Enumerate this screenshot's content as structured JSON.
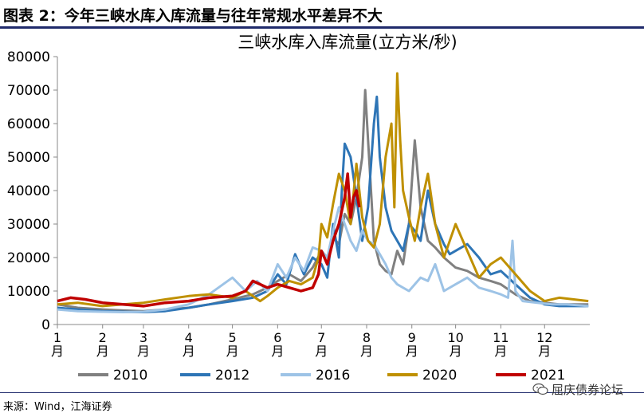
{
  "figure": {
    "label": "图表 2：今年三峡水库入库流量与往年常规水平差异不大",
    "source": "来源：Wind，江海证券",
    "watermark": "屈庆债券论坛"
  },
  "chart_data": {
    "type": "line",
    "title": "三峡水库入库流量(立方米/秒)",
    "ylim": [
      0,
      80000
    ],
    "yticks": [
      0,
      10000,
      20000,
      30000,
      40000,
      50000,
      60000,
      70000,
      80000
    ],
    "month_labels": [
      "1\n月",
      "2\n月",
      "3\n月",
      "4\n月",
      "5\n月",
      "6\n月",
      "7\n月",
      "8\n月",
      "9\n月",
      "10\n月",
      "11\n月",
      "12\n月"
    ],
    "x_unit": "day of year",
    "xlim": [
      1,
      366
    ],
    "legend_position": "bottom",
    "grid": false,
    "series": [
      {
        "name": "2010",
        "color": "#808080",
        "x": [
          1,
          15,
          32,
          46,
          60,
          75,
          91,
          105,
          121,
          135,
          145,
          152,
          160,
          168,
          176,
          182,
          186,
          190,
          194,
          198,
          202,
          206,
          210,
          212,
          214,
          216,
          218,
          222,
          226,
          230,
          234,
          238,
          242,
          246,
          250,
          255,
          260,
          266,
          274,
          282,
          290,
          298,
          305,
          315,
          325,
          335,
          345,
          355,
          365
        ],
        "y": [
          6000,
          5000,
          4500,
          4200,
          4000,
          4500,
          5000,
          6000,
          7500,
          9000,
          11000,
          13000,
          15000,
          13000,
          17000,
          22000,
          20000,
          26000,
          24000,
          33000,
          30000,
          38000,
          50000,
          70000,
          55000,
          40000,
          25000,
          18000,
          16000,
          15000,
          22000,
          18000,
          30000,
          55000,
          35000,
          25000,
          23000,
          20000,
          17000,
          16000,
          14000,
          13000,
          12000,
          9000,
          7000,
          6500,
          6000,
          6000,
          6000
        ]
      },
      {
        "name": "2012",
        "color": "#2e75b6",
        "x": [
          1,
          15,
          32,
          46,
          60,
          75,
          91,
          105,
          121,
          135,
          145,
          152,
          158,
          164,
          170,
          176,
          182,
          186,
          190,
          194,
          196,
          198,
          202,
          206,
          210,
          214,
          218,
          220,
          222,
          226,
          230,
          234,
          238,
          242,
          246,
          250,
          255,
          260,
          266,
          270,
          274,
          282,
          290,
          298,
          305,
          315,
          325,
          335,
          345,
          355,
          365
        ],
        "y": [
          5000,
          4500,
          4000,
          3800,
          3700,
          4000,
          5000,
          6000,
          7000,
          8000,
          10000,
          15000,
          12000,
          21000,
          15000,
          20000,
          18000,
          14000,
          30000,
          20000,
          40000,
          54000,
          50000,
          38000,
          25000,
          35000,
          60000,
          68000,
          50000,
          35000,
          28000,
          25000,
          22000,
          30000,
          28000,
          25000,
          40000,
          30000,
          24000,
          21000,
          22000,
          24000,
          20000,
          15000,
          16000,
          12000,
          8000,
          6000,
          5500,
          5500,
          5500
        ]
      },
      {
        "name": "2016",
        "color": "#9dc3e6",
        "x": [
          1,
          15,
          32,
          46,
          60,
          75,
          91,
          105,
          121,
          130,
          138,
          145,
          152,
          158,
          164,
          170,
          176,
          182,
          186,
          190,
          194,
          198,
          202,
          206,
          210,
          214,
          218,
          222,
          226,
          230,
          234,
          238,
          242,
          246,
          250,
          255,
          260,
          266,
          274,
          282,
          290,
          298,
          305,
          310,
          313,
          315,
          320,
          330,
          340,
          350,
          365
        ],
        "y": [
          4500,
          4000,
          3800,
          3700,
          3800,
          4500,
          6000,
          9000,
          14000,
          10000,
          13000,
          10000,
          18000,
          14000,
          20000,
          16000,
          23000,
          22000,
          20000,
          28000,
          35000,
          30000,
          25000,
          22000,
          28000,
          25000,
          24000,
          21000,
          18000,
          14000,
          12000,
          11000,
          10000,
          12000,
          14000,
          13000,
          18000,
          10000,
          12000,
          14000,
          11000,
          10000,
          9000,
          8000,
          25000,
          10000,
          7000,
          6500,
          6000,
          6000,
          5500
        ]
      },
      {
        "name": "2020",
        "color": "#bf9000",
        "x": [
          1,
          15,
          32,
          46,
          60,
          75,
          91,
          105,
          121,
          130,
          140,
          145,
          152,
          160,
          168,
          176,
          180,
          182,
          186,
          190,
          194,
          198,
          202,
          206,
          210,
          214,
          218,
          222,
          226,
          230,
          232,
          234,
          236,
          238,
          242,
          246,
          250,
          255,
          260,
          266,
          270,
          274,
          282,
          290,
          298,
          305,
          315,
          325,
          335,
          345,
          355,
          365
        ],
        "y": [
          6000,
          6500,
          5500,
          6000,
          6500,
          7500,
          8500,
          9000,
          8000,
          10000,
          7000,
          8500,
          11000,
          13000,
          12000,
          14000,
          20000,
          30000,
          26000,
          36000,
          45000,
          40000,
          30000,
          48000,
          32000,
          25000,
          23000,
          30000,
          50000,
          60000,
          35000,
          75000,
          55000,
          40000,
          32000,
          25000,
          35000,
          45000,
          30000,
          20000,
          25000,
          30000,
          22000,
          14000,
          18000,
          20000,
          15000,
          10000,
          7000,
          8000,
          7500,
          7000
        ]
      },
      {
        "name": "2021",
        "color": "#c00000",
        "x": [
          1,
          10,
          20,
          32,
          46,
          60,
          75,
          91,
          105,
          121,
          130,
          135,
          140,
          145,
          152,
          160,
          168,
          176,
          180,
          182,
          186,
          190,
          194,
          198,
          200,
          202,
          204,
          206,
          208
        ],
        "y": [
          7000,
          8000,
          7500,
          6500,
          6000,
          5500,
          6500,
          7000,
          8000,
          8500,
          10000,
          13000,
          12000,
          11000,
          12000,
          11000,
          10000,
          11000,
          15000,
          22000,
          18000,
          25000,
          30000,
          38000,
          45000,
          32000,
          38000,
          40000,
          35000
        ]
      }
    ]
  }
}
